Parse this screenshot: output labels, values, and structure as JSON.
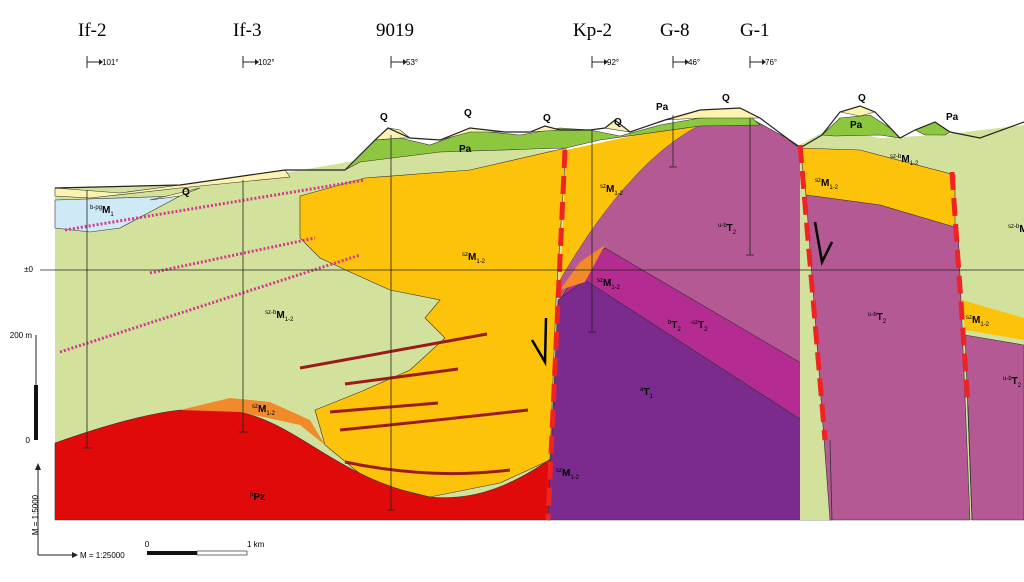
{
  "wells": [
    {
      "name": "If-2",
      "dip": "101°"
    },
    {
      "name": "If-3",
      "dip": "102°"
    },
    {
      "name": "9019",
      "dip": "53°"
    },
    {
      "name": "Kp-2",
      "dip": "92°"
    },
    {
      "name": "G-8",
      "dip": "46°"
    },
    {
      "name": "G-1",
      "dip": "76°"
    }
  ],
  "units": [
    {
      "sup": "",
      "main": "Q",
      "sub": ""
    },
    {
      "sup": "",
      "main": "Q",
      "sub": ""
    },
    {
      "sup": "",
      "main": "Q",
      "sub": ""
    },
    {
      "sup": "",
      "main": "Q",
      "sub": ""
    },
    {
      "sup": "",
      "main": "Q",
      "sub": ""
    },
    {
      "sup": "",
      "main": "Q",
      "sub": ""
    },
    {
      "sup": "",
      "main": "Q",
      "sub": ""
    },
    {
      "sup": "",
      "main": "Pa",
      "sub": ""
    },
    {
      "sup": "",
      "main": "Pa",
      "sub": ""
    },
    {
      "sup": "",
      "main": "Pa",
      "sub": ""
    },
    {
      "sup": "",
      "main": "Pa",
      "sub": ""
    },
    {
      "sup": "b-pg",
      "main": "M",
      "sub": "1"
    },
    {
      "sup": "sz-b",
      "main": "M",
      "sub": "1-2"
    },
    {
      "sup": "sz-b",
      "main": "M",
      "sub": "1-2"
    },
    {
      "sup": "sz-b",
      "main": "M",
      "sub": ""
    },
    {
      "sup": "sz",
      "main": "M",
      "sub": "1-2"
    },
    {
      "sup": "sz",
      "main": "M",
      "sub": "1-2"
    },
    {
      "sup": "sz",
      "main": "M",
      "sub": "1-2"
    },
    {
      "sup": "sz",
      "main": "M",
      "sub": "1-2"
    },
    {
      "sup": "sz",
      "main": "M",
      "sub": "1-2"
    },
    {
      "sup": "sz",
      "main": "M",
      "sub": "1-2"
    },
    {
      "sup": "sz",
      "main": "M",
      "sub": "1-2"
    },
    {
      "sup": "u-b",
      "main": "T",
      "sub": "2"
    },
    {
      "sup": "u-b",
      "main": "T",
      "sub": "2"
    },
    {
      "sup": "u-b",
      "main": "T",
      "sub": "2"
    },
    {
      "sup": "b",
      "main": "T",
      "sub": "2"
    },
    {
      "sup": "-sz",
      "main": "T",
      "sub": "2"
    },
    {
      "sup": "a",
      "main": "T",
      "sub": "1"
    },
    {
      "sup": "p",
      "main": "Pz",
      "sub": ""
    }
  ],
  "scale": {
    "zero_level": "±0",
    "vertical": "200 m",
    "vertical_zero": "0",
    "vertical_ratio": "M = 1:5000",
    "horizontal_ratio": "M = 1:25000",
    "horizontal_zero": "0",
    "horizontal_end": "1 km"
  }
}
